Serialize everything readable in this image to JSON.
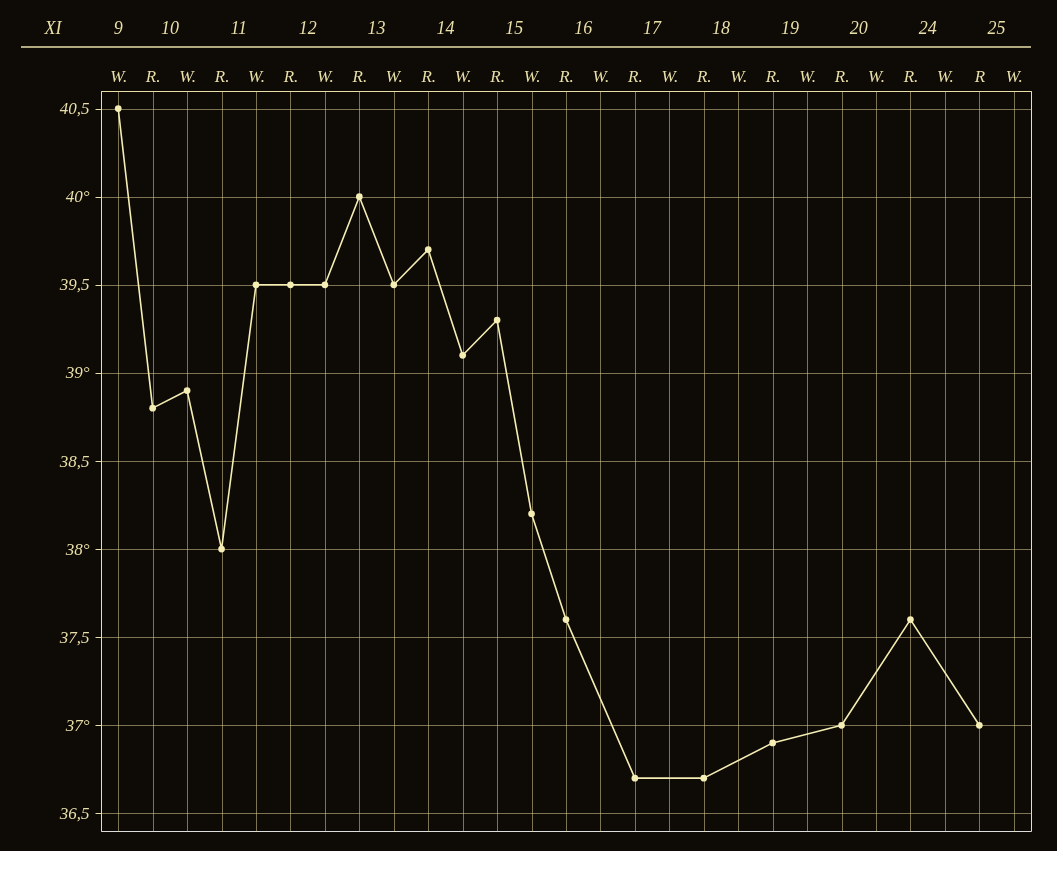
{
  "chart_data": {
    "type": "line",
    "categories": [
      "W.",
      "R.",
      "W.",
      "R.",
      "W.",
      "R.",
      "W.",
      "R.",
      "W.",
      "R.",
      "W.",
      "R.",
      "W.",
      "R.",
      "W.",
      "R.",
      "W.",
      "R.",
      "W.",
      "R.",
      "W.",
      "R.",
      "W.",
      "R.",
      "W.",
      "R",
      "W."
    ],
    "values": [
      40.5,
      38.8,
      38.9,
      38.0,
      39.5,
      39.5,
      39.5,
      40.0,
      39.5,
      39.7,
      39.1,
      39.3,
      38.2,
      37.6,
      null,
      36.7,
      null,
      36.7,
      null,
      36.9,
      null,
      37.0,
      null,
      37.6,
      null,
      37.0,
      null
    ],
    "color": "#f4edb4",
    "annotations": [
      "XI",
      "9",
      "10",
      "11",
      "12",
      "13",
      "14",
      "15",
      "16",
      "17",
      "18",
      "19",
      "20",
      "24",
      "25"
    ],
    "ylim": [
      36.4,
      40.6
    ],
    "yticks": [
      {
        "value": 36.5,
        "label": "36,5"
      },
      {
        "value": 37,
        "label": "37°"
      },
      {
        "value": 37.5,
        "label": "37,5"
      },
      {
        "value": 38,
        "label": "38°"
      },
      {
        "value": 38.5,
        "label": "38,5"
      },
      {
        "value": 39,
        "label": "39°"
      },
      {
        "value": 39.5,
        "label": "39,5"
      },
      {
        "value": 40,
        "label": "40°"
      },
      {
        "value": 40.5,
        "label": "40,5"
      }
    ],
    "grid": true,
    "marker": "circle",
    "line_style": "solid"
  }
}
